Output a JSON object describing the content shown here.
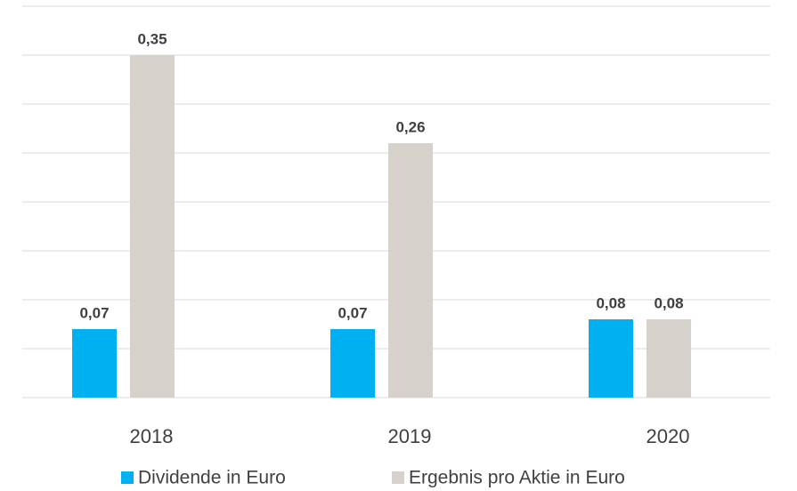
{
  "chart_data": {
    "type": "bar",
    "categories": [
      "2018",
      "2019",
      "2020"
    ],
    "series": [
      {
        "name": "Dividende in Euro",
        "color": "#00b0f0",
        "values": [
          0.07,
          0.07,
          0.08
        ],
        "value_labels": [
          "0,07",
          "0,07",
          "0,08"
        ]
      },
      {
        "name": "Ergebnis pro Aktie in Euro",
        "color": "#d6d2cb",
        "values": [
          0.35,
          0.26,
          0.08
        ],
        "value_labels": [
          "0,35",
          "0,26",
          "0,08"
        ]
      }
    ],
    "ylim": [
      0,
      0.4
    ],
    "yticks": [
      0,
      0.05,
      0.1,
      0.15,
      0.2,
      0.25,
      0.3,
      0.35,
      0.4
    ],
    "grid": true,
    "legend": "bottom"
  }
}
